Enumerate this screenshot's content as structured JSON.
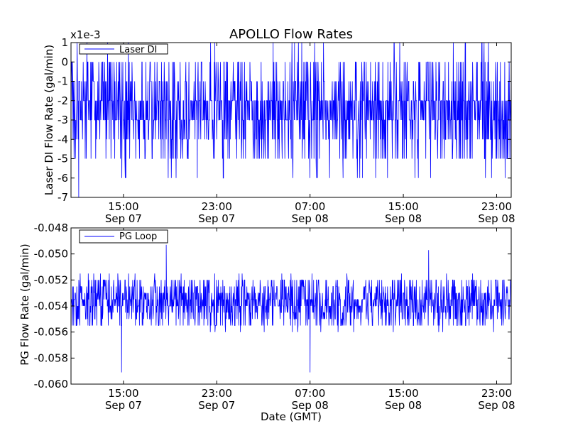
{
  "title": "APOLLO Flow Rates",
  "x_axis_label": "Date (GMT)",
  "colors": {
    "series": "#0000ff",
    "axes": "#000000",
    "background": "#ffffff"
  },
  "chart_data": [
    {
      "type": "line",
      "ylabel": "Laser DI Flow Rate (gal/min)",
      "scale_label": "x1e-3",
      "ylim": [
        -7,
        1
      ],
      "y_ticks": [
        {
          "value": 1,
          "label": "1"
        },
        {
          "value": 0,
          "label": "0"
        },
        {
          "value": -1,
          "label": "-1"
        },
        {
          "value": -2,
          "label": "-2"
        },
        {
          "value": -3,
          "label": "-3"
        },
        {
          "value": -4,
          "label": "-4"
        },
        {
          "value": -5,
          "label": "-5"
        },
        {
          "value": -6,
          "label": "-6"
        },
        {
          "value": -7,
          "label": "-7"
        }
      ],
      "xlim": [
        "2014-09-07T10:30",
        "2014-09-09T00:15"
      ],
      "x_ticks": [
        {
          "value": "2014-09-07T15:00",
          "time": "15:00",
          "date": "Sep 07"
        },
        {
          "value": "2014-09-07T23:00",
          "time": "23:00",
          "date": "Sep 07"
        },
        {
          "value": "2014-09-08T07:00",
          "time": "07:00",
          "date": "Sep 08"
        },
        {
          "value": "2014-09-08T15:00",
          "time": "15:00",
          "date": "Sep 08"
        },
        {
          "value": "2014-09-08T23:00",
          "time": "23:00",
          "date": "Sep 08"
        }
      ],
      "legend": {
        "position": "top-left",
        "entries": [
          "Laser DI"
        ]
      },
      "series": [
        {
          "name": "Laser DI",
          "typical_range": [
            -3,
            -2
          ],
          "quantization": 1,
          "min": -7,
          "max": 1,
          "notable_points": [
            {
              "x": "2014-09-07T11:10",
              "y": -7
            },
            {
              "x": "2014-09-07T18:50",
              "y": -6
            },
            {
              "x": "2014-09-07T21:20",
              "y": -6
            },
            {
              "x": "2014-09-07T22:50",
              "y": 1
            },
            {
              "x": "2014-09-08T03:50",
              "y": 1
            },
            {
              "x": "2014-09-08T05:40",
              "y": 1
            },
            {
              "x": "2014-09-08T07:40",
              "y": -6
            },
            {
              "x": "2014-09-08T09:50",
              "y": -6
            },
            {
              "x": "2014-09-08T11:30",
              "y": -6
            },
            {
              "x": "2014-09-08T20:20",
              "y": 1
            }
          ]
        }
      ]
    },
    {
      "type": "line",
      "ylabel": "PG Flow Rate (gal/min)",
      "ylim": [
        -0.06,
        -0.048
      ],
      "y_ticks": [
        {
          "value": -0.048,
          "label": "-0.048"
        },
        {
          "value": -0.05,
          "label": "-0.050"
        },
        {
          "value": -0.052,
          "label": "-0.052"
        },
        {
          "value": -0.054,
          "label": "-0.054"
        },
        {
          "value": -0.056,
          "label": "-0.056"
        },
        {
          "value": -0.058,
          "label": "-0.058"
        },
        {
          "value": -0.06,
          "label": "-0.060"
        }
      ],
      "xlim": [
        "2014-09-07T10:30",
        "2014-09-09T00:15"
      ],
      "x_ticks": [
        {
          "value": "2014-09-07T15:00",
          "time": "15:00",
          "date": "Sep 07"
        },
        {
          "value": "2014-09-07T23:00",
          "time": "23:00",
          "date": "Sep 07"
        },
        {
          "value": "2014-09-08T07:00",
          "time": "07:00",
          "date": "Sep 08"
        },
        {
          "value": "2014-09-08T15:00",
          "time": "15:00",
          "date": "Sep 08"
        },
        {
          "value": "2014-09-08T23:00",
          "time": "23:00",
          "date": "Sep 08"
        }
      ],
      "legend": {
        "position": "top-left",
        "entries": [
          "PG Loop"
        ]
      },
      "series": [
        {
          "name": "PG Loop",
          "typical_range": [
            -0.0545,
            -0.053
          ],
          "quantization": 0.0005,
          "min": -0.0591,
          "max": -0.0493,
          "notable_points": [
            {
              "x": "2014-09-07T14:50",
              "y": -0.0591
            },
            {
              "x": "2014-09-07T18:40",
              "y": -0.0493
            },
            {
              "x": "2014-09-08T07:00",
              "y": -0.0591
            },
            {
              "x": "2014-09-08T17:10",
              "y": -0.0497
            }
          ]
        }
      ]
    }
  ]
}
